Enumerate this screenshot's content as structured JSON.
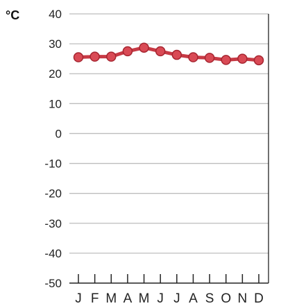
{
  "chart_data": {
    "type": "line",
    "unit_label": "°C",
    "categories": [
      "J",
      "F",
      "M",
      "A",
      "M",
      "J",
      "J",
      "A",
      "S",
      "O",
      "N",
      "D"
    ],
    "values": [
      25.5,
      25.7,
      25.7,
      27.5,
      28.7,
      27.5,
      26.3,
      25.5,
      25.3,
      24.6,
      25.0,
      24.5
    ],
    "ylim": [
      -50,
      40
    ],
    "yticks": [
      40,
      30,
      20,
      10,
      0,
      -10,
      -20,
      -30,
      -40,
      -50
    ],
    "grid": true,
    "colors": {
      "line": "#c73a45",
      "marker": "#d94a55",
      "marker_edge": "#a62530",
      "grid": "#bdbdbd",
      "axis": "#222222"
    }
  }
}
